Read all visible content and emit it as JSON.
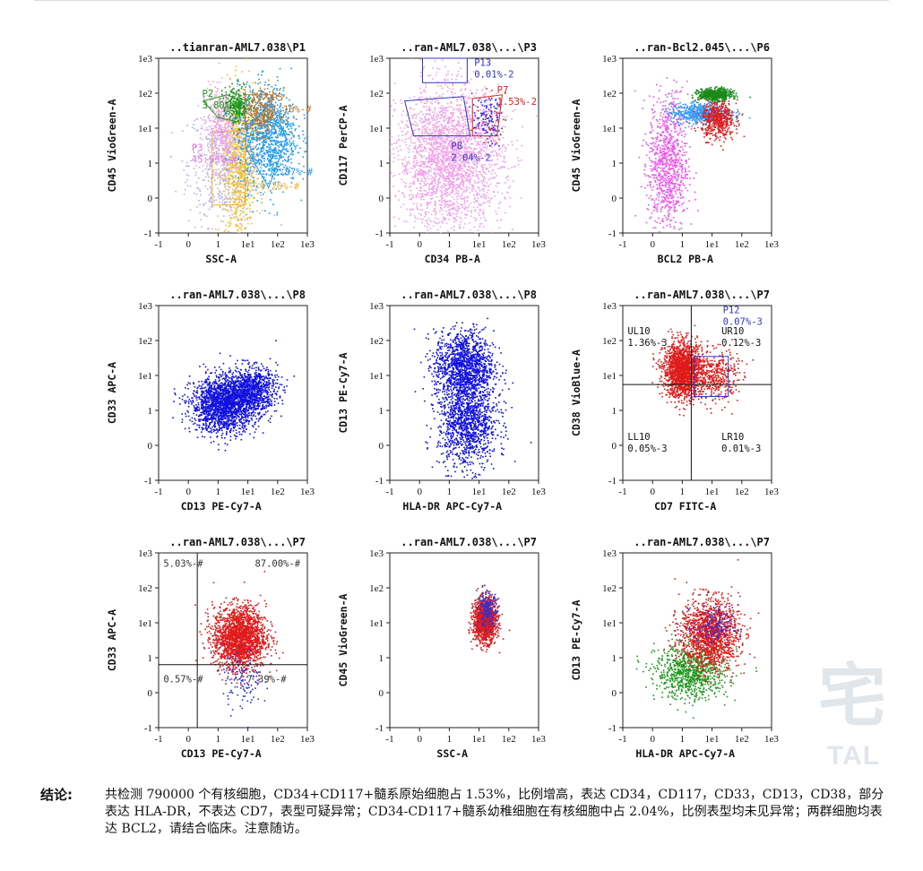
{
  "chart_data": [
    {
      "type": "scatter",
      "title": "..tianran-AML7.038\\P1",
      "xlabel": "SSC-A",
      "ylabel": "CD45 VioGreen-A",
      "xlim": [
        -1,
        1000
      ],
      "ylim": [
        -1,
        1000
      ],
      "gates": [
        {
          "name": "P2",
          "value": "3.80%-#",
          "color": "#1a9a1a",
          "label_at": [
            0.4,
            80
          ]
        },
        {
          "name": "P5",
          "value": "1.16%-#",
          "color": "#b8752a",
          "label_at": [
            55,
            60
          ]
        },
        {
          "name": "P3",
          "value": "45.53%-#",
          "color": "#e070e0",
          "label_at": [
            0.05,
            2.2
          ]
        },
        {
          "name": "",
          "value": "52.87%-#",
          "color": "#1d9bf0",
          "label_at": [
            40,
            0.65
          ]
        },
        {
          "name": "",
          "value": "9.26%-#",
          "color": "#f0b030",
          "label_at": [
            22,
            0.25
          ]
        }
      ],
      "populations": [
        {
          "name": "lymph",
          "color": "#b0b0ea",
          "center": [
            2,
            1
          ],
          "spread": [
            1.2,
            1.6
          ],
          "count": 700
        },
        {
          "name": "P3",
          "color": "#f2a0ea",
          "center": [
            1.5,
            10
          ],
          "spread": [
            0.6,
            1.1
          ],
          "count": 500
        },
        {
          "name": "yellow",
          "color": "#f5c12e",
          "center": [
            5,
            0.8
          ],
          "spread": [
            0.5,
            2.0
          ],
          "count": 700
        },
        {
          "name": "blue",
          "color": "#1d9bf0",
          "center": [
            45,
            6
          ],
          "spread": [
            0.9,
            1.3
          ],
          "count": 1000
        },
        {
          "name": "P5",
          "color": "#b8752a",
          "center": [
            25,
            30
          ],
          "spread": [
            0.6,
            0.6
          ],
          "count": 300
        },
        {
          "name": "P2",
          "color": "#1a9a1a",
          "center": [
            4,
            45
          ],
          "spread": [
            0.4,
            0.5
          ],
          "count": 250
        }
      ]
    },
    {
      "type": "scatter",
      "title": "..ran-AML7.038\\...\\P3",
      "xlabel": "CD34 PB-A",
      "ylabel": "CD117 PerCP-A",
      "xlim": [
        -1,
        1000
      ],
      "ylim": [
        -1,
        1000
      ],
      "gates": [
        {
          "name": "P13",
          "value": "0.01%-2",
          "color": "#3333cc",
          "label_at": [
            6,
            600
          ]
        },
        {
          "name": "P7",
          "value": "1.53%-2",
          "color": "#dd2222",
          "label_at": [
            35,
            100
          ]
        },
        {
          "name": "P8",
          "value": "2.04%-2",
          "color": "#3333cc",
          "label_at": [
            1,
            2.5
          ]
        }
      ],
      "populations": [
        {
          "name": "main",
          "color": "#f2a0ea",
          "center": [
            1,
            1.5
          ],
          "spread": [
            1.6,
            1.8
          ],
          "count": 2600
        },
        {
          "name": "P7",
          "color": "#2a2aee",
          "center": [
            18,
            18
          ],
          "spread": [
            0.45,
            0.6
          ],
          "count": 120
        },
        {
          "name": "P7r",
          "color": "#ee2222",
          "center": [
            20,
            20
          ],
          "spread": [
            0.5,
            0.6
          ],
          "count": 30
        }
      ]
    },
    {
      "type": "scatter",
      "title": "..ran-Bcl2.045\\...\\P6",
      "xlabel": "BCL2 PB-A",
      "ylabel": "CD45 VioGreen-A",
      "xlim": [
        -1,
        1000
      ],
      "ylim": [
        -1,
        1000
      ],
      "gates": [],
      "populations": [
        {
          "name": "magenta",
          "color": "#f050f0",
          "center": [
            0.5,
            1
          ],
          "spread": [
            0.6,
            1.8
          ],
          "count": 900
        },
        {
          "name": "blue",
          "color": "#3a9af5",
          "center": [
            4,
            28
          ],
          "spread": [
            0.9,
            0.25
          ],
          "count": 700
        },
        {
          "name": "red",
          "color": "#e01a1a",
          "center": [
            15,
            18
          ],
          "spread": [
            0.5,
            0.5
          ],
          "count": 500
        },
        {
          "name": "green",
          "color": "#1a8a1a",
          "center": [
            12,
            95
          ],
          "spread": [
            0.5,
            0.15
          ],
          "count": 600
        }
      ]
    },
    {
      "type": "scatter",
      "title": "..ran-AML7.038\\...\\P8",
      "xlabel": "CD13 PE-Cy7-A",
      "ylabel": "CD33 APC-A",
      "xlim": [
        -1,
        1000
      ],
      "ylim": [
        -1,
        1000
      ],
      "gates": [],
      "populations": [
        {
          "name": "blast",
          "color": "#1010e0",
          "center": [
            1.5,
            1.5
          ],
          "spread": [
            1.0,
            0.7
          ],
          "count": 1800
        },
        {
          "name": "hi",
          "color": "#1010e0",
          "center": [
            12,
            4
          ],
          "spread": [
            0.8,
            0.6
          ],
          "count": 900
        }
      ]
    },
    {
      "type": "scatter",
      "title": "..ran-AML7.038\\...\\P8",
      "xlabel": "HLA-DR APC-Cy7-A",
      "ylabel": "CD13 PE-Cy7-A",
      "xlim": [
        -1,
        1000
      ],
      "ylim": [
        -1,
        1000
      ],
      "gates": [],
      "populations": [
        {
          "name": "upper",
          "color": "#1010e0",
          "center": [
            3,
            20
          ],
          "spread": [
            0.9,
            0.9
          ],
          "count": 1300
        },
        {
          "name": "lower",
          "color": "#1010e0",
          "center": [
            4,
            0.7
          ],
          "spread": [
            0.9,
            1.2
          ],
          "count": 1300
        }
      ]
    },
    {
      "type": "scatter",
      "title": "..ran-AML7.038\\...\\P7",
      "xlabel": "CD7 FITC-A",
      "ylabel": "CD38 VioBlue-A",
      "xlim": [
        -1,
        1000
      ],
      "ylim": [
        -1,
        1000
      ],
      "gates": [
        {
          "name": "P12",
          "value": "0.07%-3",
          "color": "#3333cc",
          "label_at": [
            20,
            600
          ]
        },
        {
          "name": "UL10",
          "value": "1.36%-3",
          "color": "#111111",
          "label_at": [
            -0.9,
            150
          ]
        },
        {
          "name": "UR10",
          "value": "0.12%-3",
          "color": "#111111",
          "label_at": [
            18,
            150
          ]
        },
        {
          "name": "LL10",
          "value": "0.05%-3",
          "color": "#111111",
          "label_at": [
            -0.9,
            0.15
          ]
        },
        {
          "name": "LR10",
          "value": "0.01%-3",
          "color": "#111111",
          "label_at": [
            18,
            0.15
          ]
        }
      ],
      "populations": [
        {
          "name": "main",
          "color": "#e01a1a",
          "center": [
            1,
            15
          ],
          "spread": [
            0.6,
            0.7
          ],
          "count": 1700
        },
        {
          "name": "tail",
          "color": "#e01a1a",
          "center": [
            12,
            10
          ],
          "spread": [
            0.7,
            0.7
          ],
          "count": 400
        }
      ]
    },
    {
      "type": "scatter",
      "title": "..ran-AML7.038\\...\\P7",
      "xlabel": "CD13 PE-Cy7-A",
      "ylabel": "CD33 APC-A",
      "xlim": [
        -1,
        1000
      ],
      "ylim": [
        -1,
        1000
      ],
      "gates": [
        {
          "name": "",
          "value": "5.03%-#",
          "color": "#333333",
          "label_at": [
            -0.9,
            400
          ]
        },
        {
          "name": "",
          "value": "87.00%-#",
          "color": "#333333",
          "label_at": [
            15,
            400
          ]
        },
        {
          "name": "",
          "value": "0.57%-#",
          "color": "#333333",
          "label_at": [
            -0.9,
            0.3
          ]
        },
        {
          "name": "",
          "value": "7.39%-#",
          "color": "#333333",
          "label_at": [
            8,
            0.3
          ]
        }
      ],
      "populations": [
        {
          "name": "main",
          "color": "#e01a1a",
          "center": [
            5,
            4
          ],
          "spread": [
            0.8,
            0.8
          ],
          "count": 2000
        },
        {
          "name": "blue",
          "color": "#3030d0",
          "center": [
            6,
            0.4
          ],
          "spread": [
            0.6,
            0.8
          ],
          "count": 120
        }
      ]
    },
    {
      "type": "scatter",
      "title": "..ran-AML7.038\\...\\P7",
      "xlabel": "SSC-A",
      "ylabel": "CD45 VioGreen-A",
      "xlim": [
        -1,
        1000
      ],
      "ylim": [
        -1,
        1000
      ],
      "gates": [],
      "populations": [
        {
          "name": "red",
          "color": "#e01a1a",
          "center": [
            15,
            12
          ],
          "spread": [
            0.35,
            0.55
          ],
          "count": 1400
        },
        {
          "name": "blue",
          "color": "#3030d0",
          "center": [
            18,
            25
          ],
          "spread": [
            0.3,
            0.45
          ],
          "count": 200
        }
      ]
    },
    {
      "type": "scatter",
      "title": "..ran-AML7.038\\...\\P7",
      "xlabel": "HLA-DR APC-Cy7-A",
      "ylabel": "CD13 PE-Cy7-A",
      "xlim": [
        -1,
        1000
      ],
      "ylim": [
        -1,
        1000
      ],
      "gates": [],
      "populations": [
        {
          "name": "green",
          "color": "#1a9a1a",
          "center": [
            2,
            0.6
          ],
          "spread": [
            1.1,
            0.7
          ],
          "count": 900
        },
        {
          "name": "red",
          "color": "#e01a1a",
          "center": [
            8,
            5
          ],
          "spread": [
            0.9,
            0.9
          ],
          "count": 1500
        },
        {
          "name": "blue",
          "color": "#3030d0",
          "center": [
            10,
            8
          ],
          "spread": [
            0.6,
            0.5
          ],
          "count": 150
        }
      ]
    }
  ],
  "axis_ticks": {
    "x": [
      {
        "v": -1,
        "t": "-1"
      },
      {
        "v": 0,
        "t": "0"
      },
      {
        "v": 1,
        "t": "1"
      },
      {
        "v": 10,
        "t": "1e1"
      },
      {
        "v": 100,
        "t": "1e2"
      },
      {
        "v": 1000,
        "t": "1e3"
      }
    ],
    "y": [
      {
        "v": -1,
        "t": "-1"
      },
      {
        "v": 0,
        "t": "0"
      },
      {
        "v": 1,
        "t": "1"
      },
      {
        "v": 10,
        "t": "1e1"
      },
      {
        "v": 100,
        "t": "1e2"
      },
      {
        "v": 1000,
        "t": "1e3"
      }
    ]
  },
  "watermark": {
    "glyph": "宅",
    "text": "TAL"
  },
  "conclusion": {
    "label": "结论:",
    "text": "共检测 790000 个有核细胞，CD34+CD117+髓系原始细胞占 1.53%，比例增高，表达 CD34，CD117，CD33，CD13，CD38，部分表达 HLA-DR，不表达 CD7，表型可疑异常；CD34-CD117+髓系幼稚细胞在有核细胞中占 2.04%，比例表型均未见异常；两群细胞均表达 BCL2，请结合临床。注意随访。"
  }
}
